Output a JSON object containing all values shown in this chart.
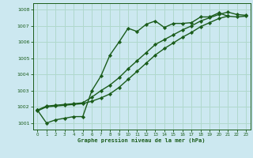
{
  "background_color": "#cce8f0",
  "grid_color": "#b0d8cc",
  "line_color": "#1a5c1a",
  "marker_color": "#1a5c1a",
  "xlabel": "Graphe pression niveau de la mer (hPa)",
  "xlabel_color": "#1a5c1a",
  "xlim": [
    -0.5,
    23.5
  ],
  "ylim": [
    1000.6,
    1008.4
  ],
  "yticks": [
    1001,
    1002,
    1003,
    1004,
    1005,
    1006,
    1007,
    1008
  ],
  "xticks": [
    0,
    1,
    2,
    3,
    4,
    5,
    6,
    7,
    8,
    9,
    10,
    11,
    12,
    13,
    14,
    15,
    16,
    17,
    18,
    19,
    20,
    21,
    22,
    23
  ],
  "series": [
    {
      "x": [
        0,
        1,
        2,
        3,
        4,
        5,
        6,
        7,
        8,
        9,
        10,
        11,
        12,
        13,
        14,
        15,
        16,
        17,
        18,
        19,
        20,
        21
      ],
      "y": [
        1001.8,
        1001.0,
        1001.2,
        1001.3,
        1001.4,
        1001.4,
        1003.0,
        1003.9,
        1005.2,
        1006.0,
        1006.85,
        1006.65,
        1007.1,
        1007.3,
        1006.9,
        1007.15,
        1007.15,
        1007.2,
        1007.55,
        1007.55,
        1007.8,
        1007.6
      ],
      "marker": "D",
      "markersize": 2.2,
      "linewidth": 1.0
    },
    {
      "x": [
        0,
        1,
        2,
        3,
        4,
        5,
        6,
        7,
        8,
        9,
        10,
        11,
        12,
        13,
        14,
        15,
        16,
        17,
        18,
        19,
        20,
        21,
        22,
        23
      ],
      "y": [
        1001.8,
        1002.05,
        1002.1,
        1002.15,
        1002.2,
        1002.25,
        1002.6,
        1003.0,
        1003.35,
        1003.8,
        1004.35,
        1004.85,
        1005.35,
        1005.85,
        1006.15,
        1006.45,
        1006.75,
        1007.0,
        1007.3,
        1007.5,
        1007.7,
        1007.85,
        1007.7,
        1007.65
      ],
      "marker": "D",
      "markersize": 2.2,
      "linewidth": 1.0
    },
    {
      "x": [
        0,
        1,
        2,
        3,
        4,
        5,
        6,
        7,
        8,
        9,
        10,
        11,
        12,
        13,
        14,
        15,
        16,
        17,
        18,
        19,
        20,
        21,
        22,
        23
      ],
      "y": [
        1001.75,
        1002.0,
        1002.05,
        1002.1,
        1002.15,
        1002.2,
        1002.35,
        1002.55,
        1002.8,
        1003.2,
        1003.7,
        1004.2,
        1004.7,
        1005.2,
        1005.6,
        1005.95,
        1006.3,
        1006.6,
        1006.95,
        1007.2,
        1007.45,
        1007.6,
        1007.55,
        1007.6
      ],
      "marker": "D",
      "markersize": 2.2,
      "linewidth": 1.0
    }
  ]
}
